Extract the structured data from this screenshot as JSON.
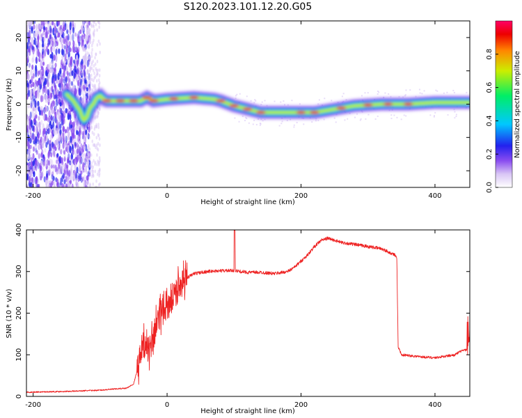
{
  "title": "S120.2023.101.12.20.G05",
  "colors": {
    "snr_line": "#ee2222",
    "spectrogram_colormap": [
      "#ffffff",
      "#d9c6f5",
      "#8a4df0",
      "#2222ee",
      "#00c8ff",
      "#00ee66",
      "#ccee00",
      "#ff8800",
      "#ee0000",
      "#ff0066"
    ]
  },
  "chart_data": [
    {
      "type": "heatmap",
      "name": "spectrogram",
      "xlabel": "Height of straight line (km)",
      "ylabel": "Frequency (Hz)",
      "xlim": [
        -210,
        452
      ],
      "ylim": [
        -25,
        25
      ],
      "xticks": [
        -200,
        0,
        200,
        400
      ],
      "yticks": [
        -20,
        -10,
        0,
        10,
        20
      ],
      "xtick_labels": [
        "-200",
        "0",
        "200",
        "400"
      ],
      "ytick_labels": [
        "-20",
        "-10",
        "0",
        "10",
        "20"
      ],
      "ridge_frequency_hz": {
        "x": [
          -150,
          -140,
          -130,
          -125,
          -120,
          -115,
          -110,
          -105,
          -100,
          -95,
          -90,
          -80,
          -60,
          -40,
          -30,
          -20,
          0,
          40,
          70,
          80,
          100,
          120,
          140,
          160,
          180,
          200,
          220,
          250,
          280,
          320,
          360,
          400,
          452
        ],
        "y": [
          3,
          1,
          -2,
          -5,
          -4,
          -1,
          0,
          2,
          2.5,
          1.5,
          1,
          1,
          1,
          1,
          2,
          1,
          1.5,
          2,
          1.5,
          1,
          -0.5,
          -1.5,
          -2.5,
          -2.5,
          -2.5,
          -2.5,
          -2.5,
          -1.5,
          -0.5,
          0,
          0,
          0.5,
          0.5
        ]
      },
      "colorbar": {
        "label": "Normalized spectral amplitude",
        "range": [
          0,
          1
        ],
        "ticks": [
          0.0,
          0.2,
          0.4,
          0.6,
          0.8
        ],
        "tick_labels": [
          "0.0",
          "0.2",
          "0.4",
          "0.6",
          "0.8"
        ]
      }
    },
    {
      "type": "line",
      "name": "snr",
      "xlabel": "Height of straight line (km)",
      "ylabel": "SNR (10 * v/v)",
      "xlim": [
        -210,
        452
      ],
      "ylim": [
        0,
        400
      ],
      "xticks": [
        -200,
        0,
        200,
        400
      ],
      "yticks": [
        0,
        100,
        200,
        300,
        400
      ],
      "xtick_labels": [
        "-200",
        "0",
        "200",
        "400"
      ],
      "ytick_labels": [
        "0",
        "100",
        "200",
        "300",
        "400"
      ],
      "series": [
        {
          "x": [
            -210,
            -150,
            -100,
            -60,
            -50,
            -45,
            -40,
            -35,
            -30,
            -25,
            -20,
            -10,
            0,
            10,
            20,
            30,
            40,
            60,
            80,
            100,
            120,
            140,
            160,
            180,
            190,
            200,
            210,
            220,
            230,
            240,
            260,
            280,
            300,
            320,
            340,
            343,
            345,
            350,
            380,
            400,
            430,
            440,
            450,
            452
          ],
          "y": [
            10,
            12,
            15,
            20,
            30,
            60,
            100,
            120,
            130,
            110,
            150,
            200,
            220,
            245,
            270,
            285,
            295,
            300,
            302,
            302,
            298,
            298,
            295,
            300,
            310,
            325,
            340,
            360,
            375,
            380,
            370,
            365,
            360,
            355,
            340,
            330,
            120,
            100,
            95,
            93,
            100,
            110,
            112,
            130
          ]
        }
      ]
    }
  ]
}
